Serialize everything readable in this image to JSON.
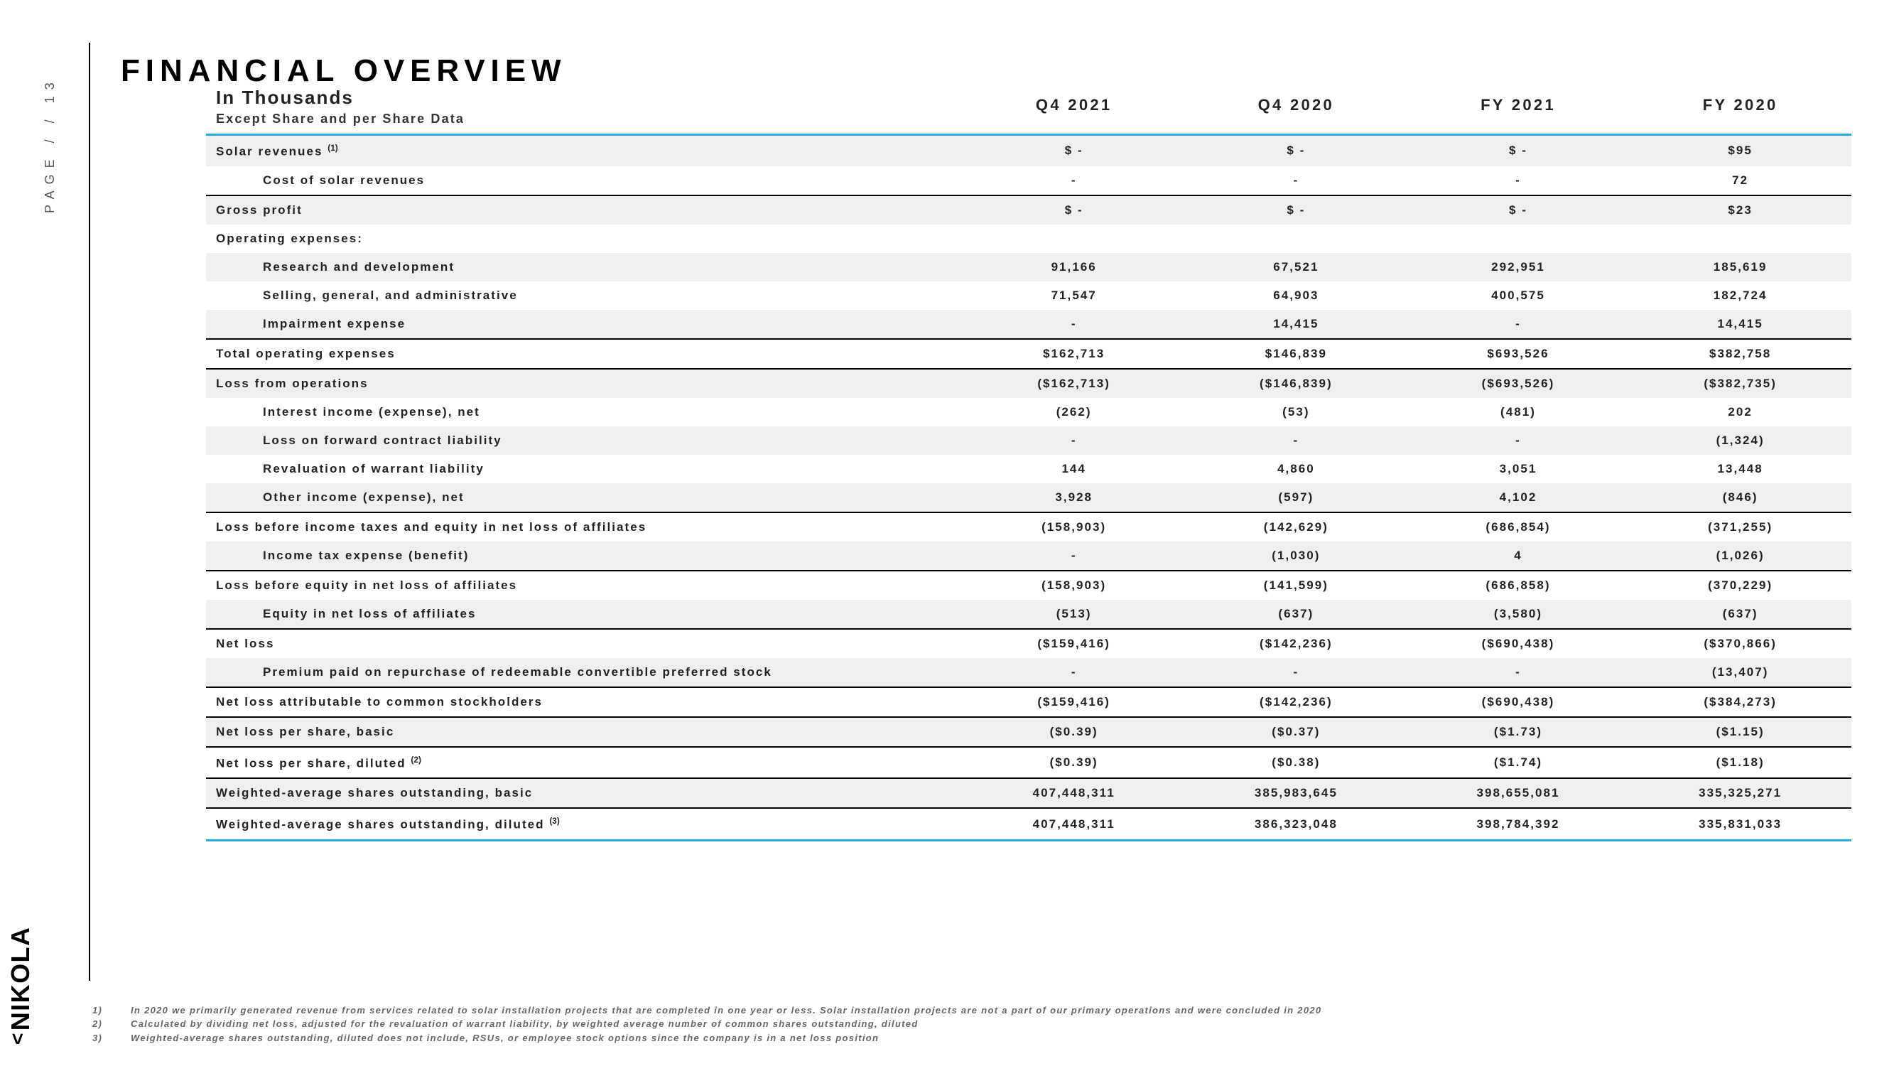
{
  "page_label": "PAGE  /  /  13",
  "logo": "NIKOLA",
  "title": "FINANCIAL OVERVIEW",
  "subtitle": "In Thousands",
  "subsub": "Except Share and per Share Data",
  "columns": [
    "Q4 2021",
    "Q4 2020",
    "FY 2021",
    "FY 2020"
  ],
  "rows": [
    {
      "label": "Solar revenues (1)",
      "sup": "(1)",
      "base": "Solar revenues ",
      "v": [
        "$ -",
        "$ -",
        "$ -",
        "$95"
      ],
      "zebra": true,
      "top": "blue"
    },
    {
      "label": "Cost of solar revenues",
      "indent": 1,
      "v": [
        "-",
        "-",
        "-",
        "72"
      ]
    },
    {
      "label": "Gross profit",
      "v": [
        "$ -",
        "$ -",
        "$ -",
        "$23"
      ],
      "zebra": true,
      "top": "black"
    },
    {
      "label": "Operating expenses:",
      "v": [
        "",
        "",
        "",
        ""
      ]
    },
    {
      "label": "Research and development",
      "indent": 1,
      "v": [
        "91,166",
        "67,521",
        "292,951",
        "185,619"
      ],
      "zebra": true
    },
    {
      "label": "Selling, general, and administrative",
      "indent": 1,
      "v": [
        "71,547",
        "64,903",
        "400,575",
        "182,724"
      ]
    },
    {
      "label": "Impairment expense",
      "indent": 1,
      "v": [
        "-",
        "14,415",
        "-",
        "14,415"
      ],
      "zebra": true
    },
    {
      "label": "Total operating expenses",
      "v": [
        "$162,713",
        "$146,839",
        "$693,526",
        "$382,758"
      ],
      "top": "black"
    },
    {
      "label": "Loss from operations",
      "v": [
        "($162,713)",
        "($146,839)",
        "($693,526)",
        "($382,735)"
      ],
      "zebra": true,
      "top": "black"
    },
    {
      "label": "Interest income (expense), net",
      "indent": 1,
      "v": [
        "(262)",
        "(53)",
        "(481)",
        "202"
      ]
    },
    {
      "label": "Loss on forward contract liability",
      "indent": 1,
      "v": [
        "-",
        "-",
        "-",
        "(1,324)"
      ],
      "zebra": true
    },
    {
      "label": "Revaluation of warrant liability",
      "indent": 1,
      "v": [
        "144",
        "4,860",
        "3,051",
        "13,448"
      ]
    },
    {
      "label": "Other income (expense), net",
      "indent": 1,
      "v": [
        "3,928",
        "(597)",
        "4,102",
        "(846)"
      ],
      "zebra": true
    },
    {
      "label": "Loss before income taxes and equity in net loss of affiliates",
      "v": [
        "(158,903)",
        "(142,629)",
        "(686,854)",
        "(371,255)"
      ],
      "top": "black"
    },
    {
      "label": "Income tax expense (benefit)",
      "indent": 1,
      "v": [
        "-",
        "(1,030)",
        "4",
        "(1,026)"
      ],
      "zebra": true
    },
    {
      "label": "Loss before equity in net loss of affiliates",
      "v": [
        "(158,903)",
        "(141,599)",
        "(686,858)",
        "(370,229)"
      ],
      "top": "black"
    },
    {
      "label": "Equity in net loss of affiliates",
      "indent": 1,
      "v": [
        "(513)",
        "(637)",
        "(3,580)",
        "(637)"
      ],
      "zebra": true
    },
    {
      "label": "Net loss",
      "v": [
        "($159,416)",
        "($142,236)",
        "($690,438)",
        "($370,866)"
      ],
      "top": "black"
    },
    {
      "label": "Premium paid on repurchase of redeemable convertible preferred stock",
      "indent": 1,
      "v": [
        "-",
        "-",
        "-",
        "(13,407)"
      ],
      "zebra": true
    },
    {
      "label": "Net loss attributable to common stockholders",
      "v": [
        "($159,416)",
        "($142,236)",
        "($690,438)",
        "($384,273)"
      ],
      "top": "black"
    },
    {
      "label": "Net loss per share, basic",
      "v": [
        "($0.39)",
        "($0.37)",
        "($1.73)",
        "($1.15)"
      ],
      "zebra": true,
      "top": "black"
    },
    {
      "label": "Net loss per share, diluted (2)",
      "base": "Net loss per share, diluted ",
      "sup": "(2)",
      "v": [
        "($0.39)",
        "($0.38)",
        "($1.74)",
        "($1.18)"
      ],
      "top": "black"
    },
    {
      "label": "Weighted-average shares outstanding, basic",
      "v": [
        "407,448,311",
        "385,983,645",
        "398,655,081",
        "335,325,271"
      ],
      "zebra": true,
      "top": "black"
    },
    {
      "label": "Weighted-average shares outstanding, diluted (3)",
      "base": "Weighted-average shares outstanding, diluted ",
      "sup": "(3)",
      "v": [
        "407,448,311",
        "386,323,048",
        "398,784,392",
        "335,831,033"
      ],
      "top": "black",
      "bot": "blue"
    }
  ],
  "footnotes": [
    {
      "n": "1)",
      "t": "In 2020 we primarily generated revenue from services related to solar installation projects that are completed in one year or less. Solar installation projects are not a part of our primary operations and were concluded in 2020"
    },
    {
      "n": "2)",
      "t": "Calculated by dividing net loss, adjusted for the revaluation of warrant liability, by weighted average number of common shares outstanding, diluted"
    },
    {
      "n": "3)",
      "t": "Weighted-average shares outstanding, diluted does not include, RSUs, or employee stock options since the company is in a net loss position"
    }
  ]
}
